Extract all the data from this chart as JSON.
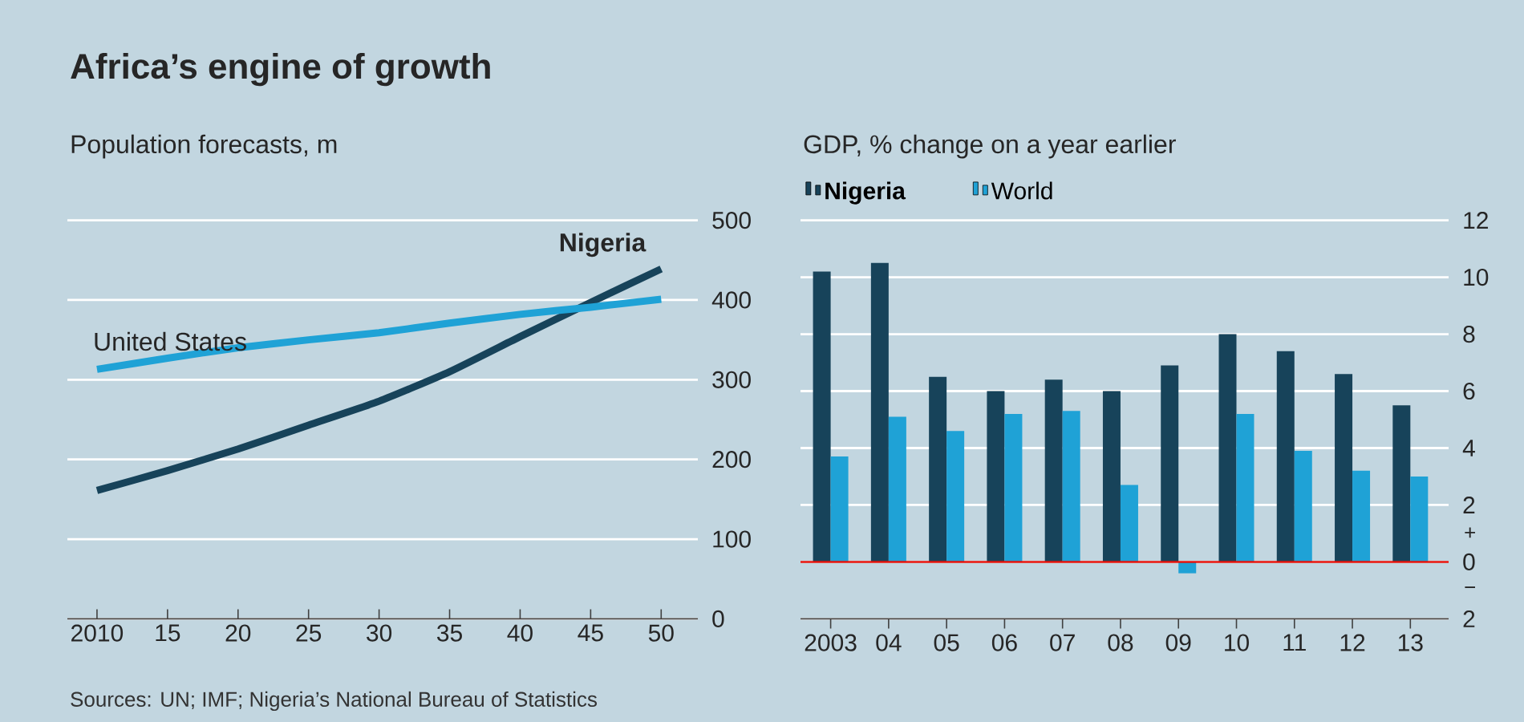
{
  "chart_data": [
    {
      "type": "line",
      "title": "Africa’s engine of growth",
      "subtitle": "Population forecasts, m",
      "x": [
        2010,
        2015,
        2020,
        2025,
        2030,
        2035,
        2040,
        2045,
        2050
      ],
      "series": [
        {
          "name": "Nigeria",
          "color": "#17435a",
          "values": [
            161,
            186,
            213,
            243,
            273,
            310,
            354,
            397,
            439
          ]
        },
        {
          "name": "United States",
          "color": "#1fa2d6",
          "values": [
            313,
            327,
            340,
            350,
            359,
            371,
            382,
            391,
            401
          ]
        }
      ],
      "xlim": [
        2007.9,
        2052.6
      ],
      "ylim": [
        0,
        500
      ],
      "xticks": [
        2010,
        {
          "value": 2015,
          "label": "15"
        },
        {
          "value": 2020,
          "label": "20"
        },
        {
          "value": 2025,
          "label": "25"
        },
        {
          "value": 2030,
          "label": "30"
        },
        {
          "value": 2035,
          "label": "35"
        },
        {
          "value": 2040,
          "label": "40"
        },
        {
          "value": 2045,
          "label": "45"
        },
        {
          "value": 2050,
          "label": "50"
        }
      ],
      "yticks": [
        0,
        100,
        200,
        300,
        400,
        500
      ],
      "grid": "y",
      "annotations": [
        "Sources: UN; IMF; Nigeria’s National Bureau of Statistics"
      ]
    },
    {
      "type": "bar",
      "title": "GDP, % change on a year earlier",
      "categories": [
        "2003",
        "04",
        "05",
        "06",
        "07",
        "08",
        "09",
        "10",
        "11",
        "12",
        "13"
      ],
      "series": [
        {
          "name": "Nigeria",
          "color": "#17435a",
          "values": [
            10.2,
            10.5,
            6.5,
            6.0,
            6.4,
            6.0,
            6.9,
            8.0,
            7.4,
            6.6,
            5.5
          ]
        },
        {
          "name": "World",
          "color": "#1fa2d6",
          "values": [
            3.7,
            5.1,
            4.6,
            5.2,
            5.3,
            2.7,
            -0.4,
            5.2,
            3.9,
            3.2,
            3.0
          ]
        }
      ],
      "ylim": [
        -2,
        12
      ],
      "yticks": [
        {
          "value": -2,
          "label": "2"
        },
        0,
        2,
        4,
        6,
        8,
        10,
        12
      ],
      "grid": "y",
      "legend": "top left",
      "ref_lines": [
        {
          "axis": "y",
          "value": 0,
          "color": "#e3120b"
        }
      ],
      "annotations": [
        "+",
        "−"
      ]
    }
  ]
}
